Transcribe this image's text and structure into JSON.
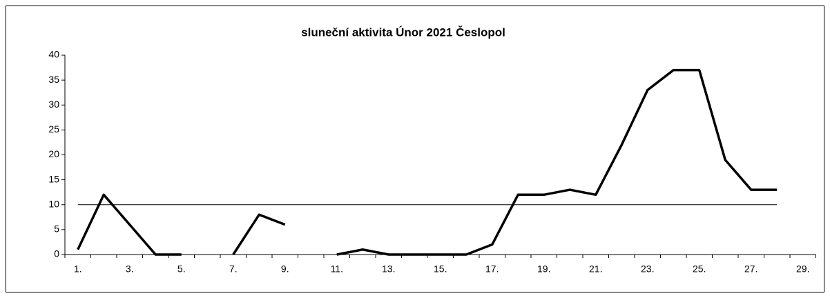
{
  "chart_data": {
    "type": "line",
    "title": "sluneční aktivita  Únor 2021 Česlopol",
    "categories": [
      "1.",
      null,
      "3.",
      null,
      "5.",
      null,
      "7.",
      null,
      "9.",
      null,
      "11.",
      null,
      "13.",
      null,
      "15.",
      null,
      "17.",
      null,
      "19.",
      null,
      "21.",
      null,
      "23.",
      null,
      "25.",
      null,
      "27.",
      null,
      "29."
    ],
    "series": [
      {
        "color": "#000000",
        "values": [
          1,
          12,
          6,
          0,
          0,
          null,
          0,
          8,
          6,
          null,
          0,
          1,
          0,
          0,
          0,
          0,
          2,
          12,
          12,
          13,
          12,
          22,
          33,
          37,
          37,
          19,
          13,
          13,
          null
        ]
      },
      {
        "color": "#000000",
        "values": [
          10,
          10,
          10,
          10,
          10,
          10,
          10,
          10,
          10,
          10,
          10,
          10,
          10,
          10,
          10,
          10,
          10,
          10,
          10,
          10,
          10,
          10,
          10,
          10,
          10,
          10,
          10,
          10,
          null
        ]
      }
    ],
    "ylim": [
      0,
      40
    ],
    "yticks": [
      0,
      5,
      10,
      15,
      20,
      25,
      30,
      35,
      40
    ],
    "grid": false
  }
}
